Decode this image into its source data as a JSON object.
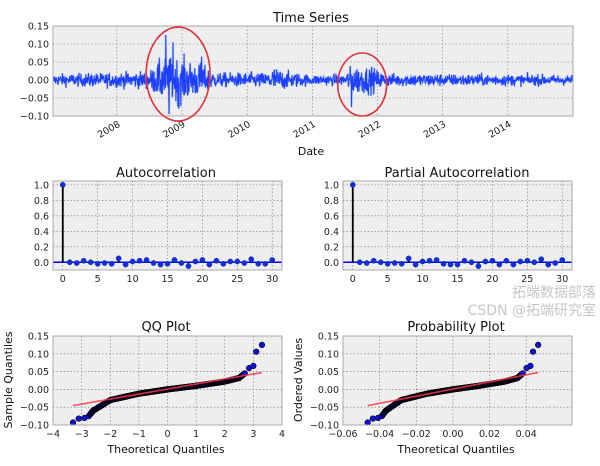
{
  "colors": {
    "series": "#1f3fff",
    "stem": "#000000",
    "fit_line": "#ff3344",
    "highlight": "#e0303a",
    "plot_bg": "#eeeeee",
    "marker": "#1030e0"
  },
  "watermark": {
    "line1": "拓端数据部落",
    "line2": "CSDN @拓端研究室"
  },
  "chart_data": [
    {
      "id": "time-series",
      "type": "line",
      "title": "Time Series",
      "xlabel": "Date",
      "ylabel": "",
      "xlim": [
        2007.02,
        2015.0
      ],
      "ylim": [
        -0.1,
        0.15
      ],
      "xticks": [
        2008,
        2009,
        2010,
        2011,
        2012,
        2013,
        2014
      ],
      "xtick_labels": [
        "2008",
        "2009",
        "2010",
        "2011",
        "2012",
        "2013",
        "2014"
      ],
      "yticks": [
        -0.1,
        -0.05,
        0.0,
        0.05,
        0.1,
        0.15
      ],
      "ytick_labels": [
        "−0.10",
        "−0.05",
        "0.00",
        "0.05",
        "0.10",
        "0.15"
      ],
      "grid": true,
      "volatility_profile": [
        [
          2007.02,
          0.008
        ],
        [
          2008.0,
          0.01
        ],
        [
          2008.5,
          0.012
        ],
        [
          2008.7,
          0.03
        ],
        [
          2009.0,
          0.03
        ],
        [
          2009.3,
          0.022
        ],
        [
          2009.5,
          0.01
        ],
        [
          2010.3,
          0.01
        ],
        [
          2010.4,
          0.018
        ],
        [
          2010.6,
          0.012
        ],
        [
          2011.0,
          0.007
        ],
        [
          2011.5,
          0.008
        ],
        [
          2011.6,
          0.02
        ],
        [
          2011.9,
          0.018
        ],
        [
          2012.1,
          0.009
        ],
        [
          2015.0,
          0.007
        ]
      ],
      "extremes": [
        [
          2008.75,
          0.125
        ],
        [
          2008.8,
          -0.095
        ],
        [
          2008.86,
          0.105
        ],
        [
          2008.95,
          -0.08
        ],
        [
          2009.3,
          0.065
        ],
        [
          2011.6,
          -0.075
        ]
      ],
      "highlights": [
        {
          "x": [
            2008.45,
            2009.43
          ],
          "y": [
            -0.114,
            0.147
          ]
        },
        {
          "x": [
            2011.39,
            2012.14
          ],
          "y": [
            -0.1,
            0.075
          ]
        }
      ]
    },
    {
      "id": "acf",
      "type": "stem",
      "title": "Autocorrelation",
      "xlim": [
        -1.4,
        31.4
      ],
      "ylim": [
        -0.1,
        1.05
      ],
      "xticks": [
        0,
        5,
        10,
        15,
        20,
        25,
        30
      ],
      "xtick_labels": [
        "0",
        "5",
        "10",
        "15",
        "20",
        "25",
        "30"
      ],
      "yticks": [
        0.0,
        0.2,
        0.4,
        0.6,
        0.8,
        1.0
      ],
      "ytick_labels": [
        "0.0",
        "0.2",
        "0.4",
        "0.6",
        "0.8",
        "1.0"
      ],
      "grid": true,
      "lags": [
        0,
        1,
        2,
        3,
        4,
        5,
        6,
        7,
        8,
        9,
        10,
        11,
        12,
        13,
        14,
        15,
        16,
        17,
        18,
        19,
        20,
        21,
        22,
        23,
        24,
        25,
        26,
        27,
        28,
        29,
        30
      ],
      "values": [
        1.0,
        0.0,
        -0.01,
        0.02,
        0.0,
        -0.02,
        -0.01,
        -0.02,
        0.05,
        -0.03,
        0.01,
        0.02,
        0.03,
        -0.01,
        -0.03,
        -0.02,
        0.03,
        -0.01,
        -0.05,
        0.01,
        0.03,
        -0.03,
        0.02,
        -0.02,
        0.01,
        0.01,
        -0.01,
        0.04,
        -0.02,
        -0.02,
        0.03
      ]
    },
    {
      "id": "pacf",
      "type": "stem",
      "title": "Partial Autocorrelation",
      "xlim": [
        -1.4,
        31.4
      ],
      "ylim": [
        -0.1,
        1.05
      ],
      "xticks": [
        0,
        5,
        10,
        15,
        20,
        25,
        30
      ],
      "xtick_labels": [
        "0",
        "5",
        "10",
        "15",
        "20",
        "25",
        "30"
      ],
      "yticks": [
        0.0,
        0.2,
        0.4,
        0.6,
        0.8,
        1.0
      ],
      "ytick_labels": [
        "0.0",
        "0.2",
        "0.4",
        "0.6",
        "0.8",
        "1.0"
      ],
      "grid": true,
      "lags": [
        0,
        1,
        2,
        3,
        4,
        5,
        6,
        7,
        8,
        9,
        10,
        11,
        12,
        13,
        14,
        15,
        16,
        17,
        18,
        19,
        20,
        21,
        22,
        23,
        24,
        25,
        26,
        27,
        28,
        29,
        30
      ],
      "values": [
        1.0,
        0.0,
        -0.01,
        0.02,
        0.0,
        -0.02,
        -0.01,
        -0.02,
        0.05,
        -0.03,
        0.01,
        0.02,
        0.03,
        -0.02,
        -0.03,
        -0.03,
        0.02,
        0.0,
        -0.05,
        0.01,
        0.02,
        -0.03,
        0.02,
        -0.03,
        0.01,
        0.02,
        0.0,
        0.04,
        -0.03,
        -0.01,
        0.03
      ]
    },
    {
      "id": "qq",
      "type": "scatter",
      "title": "QQ Plot",
      "xlabel": "Theoretical Quantiles",
      "ylabel": "Sample Quantiles",
      "xlim": [
        -4,
        4
      ],
      "ylim": [
        -0.1,
        0.15
      ],
      "xticks": [
        -4,
        -3,
        -2,
        -1,
        0,
        1,
        2,
        3,
        4
      ],
      "xtick_labels": [
        "−4",
        "−3",
        "−2",
        "−1",
        "0",
        "1",
        "2",
        "3",
        "4"
      ],
      "yticks": [
        -0.1,
        -0.05,
        0.0,
        0.05,
        0.1,
        0.15
      ],
      "ytick_labels": [
        "−0.10",
        "−0.05",
        "0.00",
        "0.05",
        "0.10",
        "0.15"
      ],
      "grid": true,
      "quantile_curve": [
        [
          -3.3,
          -0.093
        ],
        [
          -3.1,
          -0.082
        ],
        [
          -2.9,
          -0.08
        ],
        [
          -2.75,
          -0.075
        ],
        [
          -2.6,
          -0.06
        ],
        [
          -2.4,
          -0.05
        ],
        [
          -2.0,
          -0.03
        ],
        [
          -1.0,
          -0.012
        ],
        [
          0,
          0
        ],
        [
          1,
          0.01
        ],
        [
          2,
          0.022
        ],
        [
          2.5,
          0.032
        ],
        [
          2.7,
          0.045
        ],
        [
          2.85,
          0.06
        ],
        [
          3.0,
          0.066
        ],
        [
          3.1,
          0.106
        ],
        [
          3.3,
          0.125
        ]
      ],
      "fit_line": {
        "slope": 0.0141,
        "intercept": 0.001,
        "x_range": [
          -3.3,
          3.3
        ]
      }
    },
    {
      "id": "prob",
      "type": "scatter",
      "title": "Probability Plot",
      "xlabel": "Theoretical Quantiles",
      "ylabel": "Ordered Values",
      "xlim": [
        -0.06,
        0.065
      ],
      "ylim": [
        -0.1,
        0.15
      ],
      "xticks": [
        -0.06,
        -0.04,
        -0.02,
        0.0,
        0.02,
        0.04
      ],
      "xtick_labels": [
        "−0.06",
        "−0.04",
        "−0.02",
        "0.00",
        "0.02",
        "0.04"
      ],
      "yticks": [
        -0.1,
        -0.05,
        0.0,
        0.05,
        0.1,
        0.15
      ],
      "ytick_labels": [
        "−0.10",
        "−0.05",
        "0.00",
        "0.05",
        "0.10",
        "0.15"
      ],
      "grid": true,
      "x_scale": 0.0141,
      "fit_line": {
        "slope": 1.0,
        "intercept": 0.001,
        "x_range": [
          -0.0465,
          0.0465
        ]
      }
    }
  ]
}
